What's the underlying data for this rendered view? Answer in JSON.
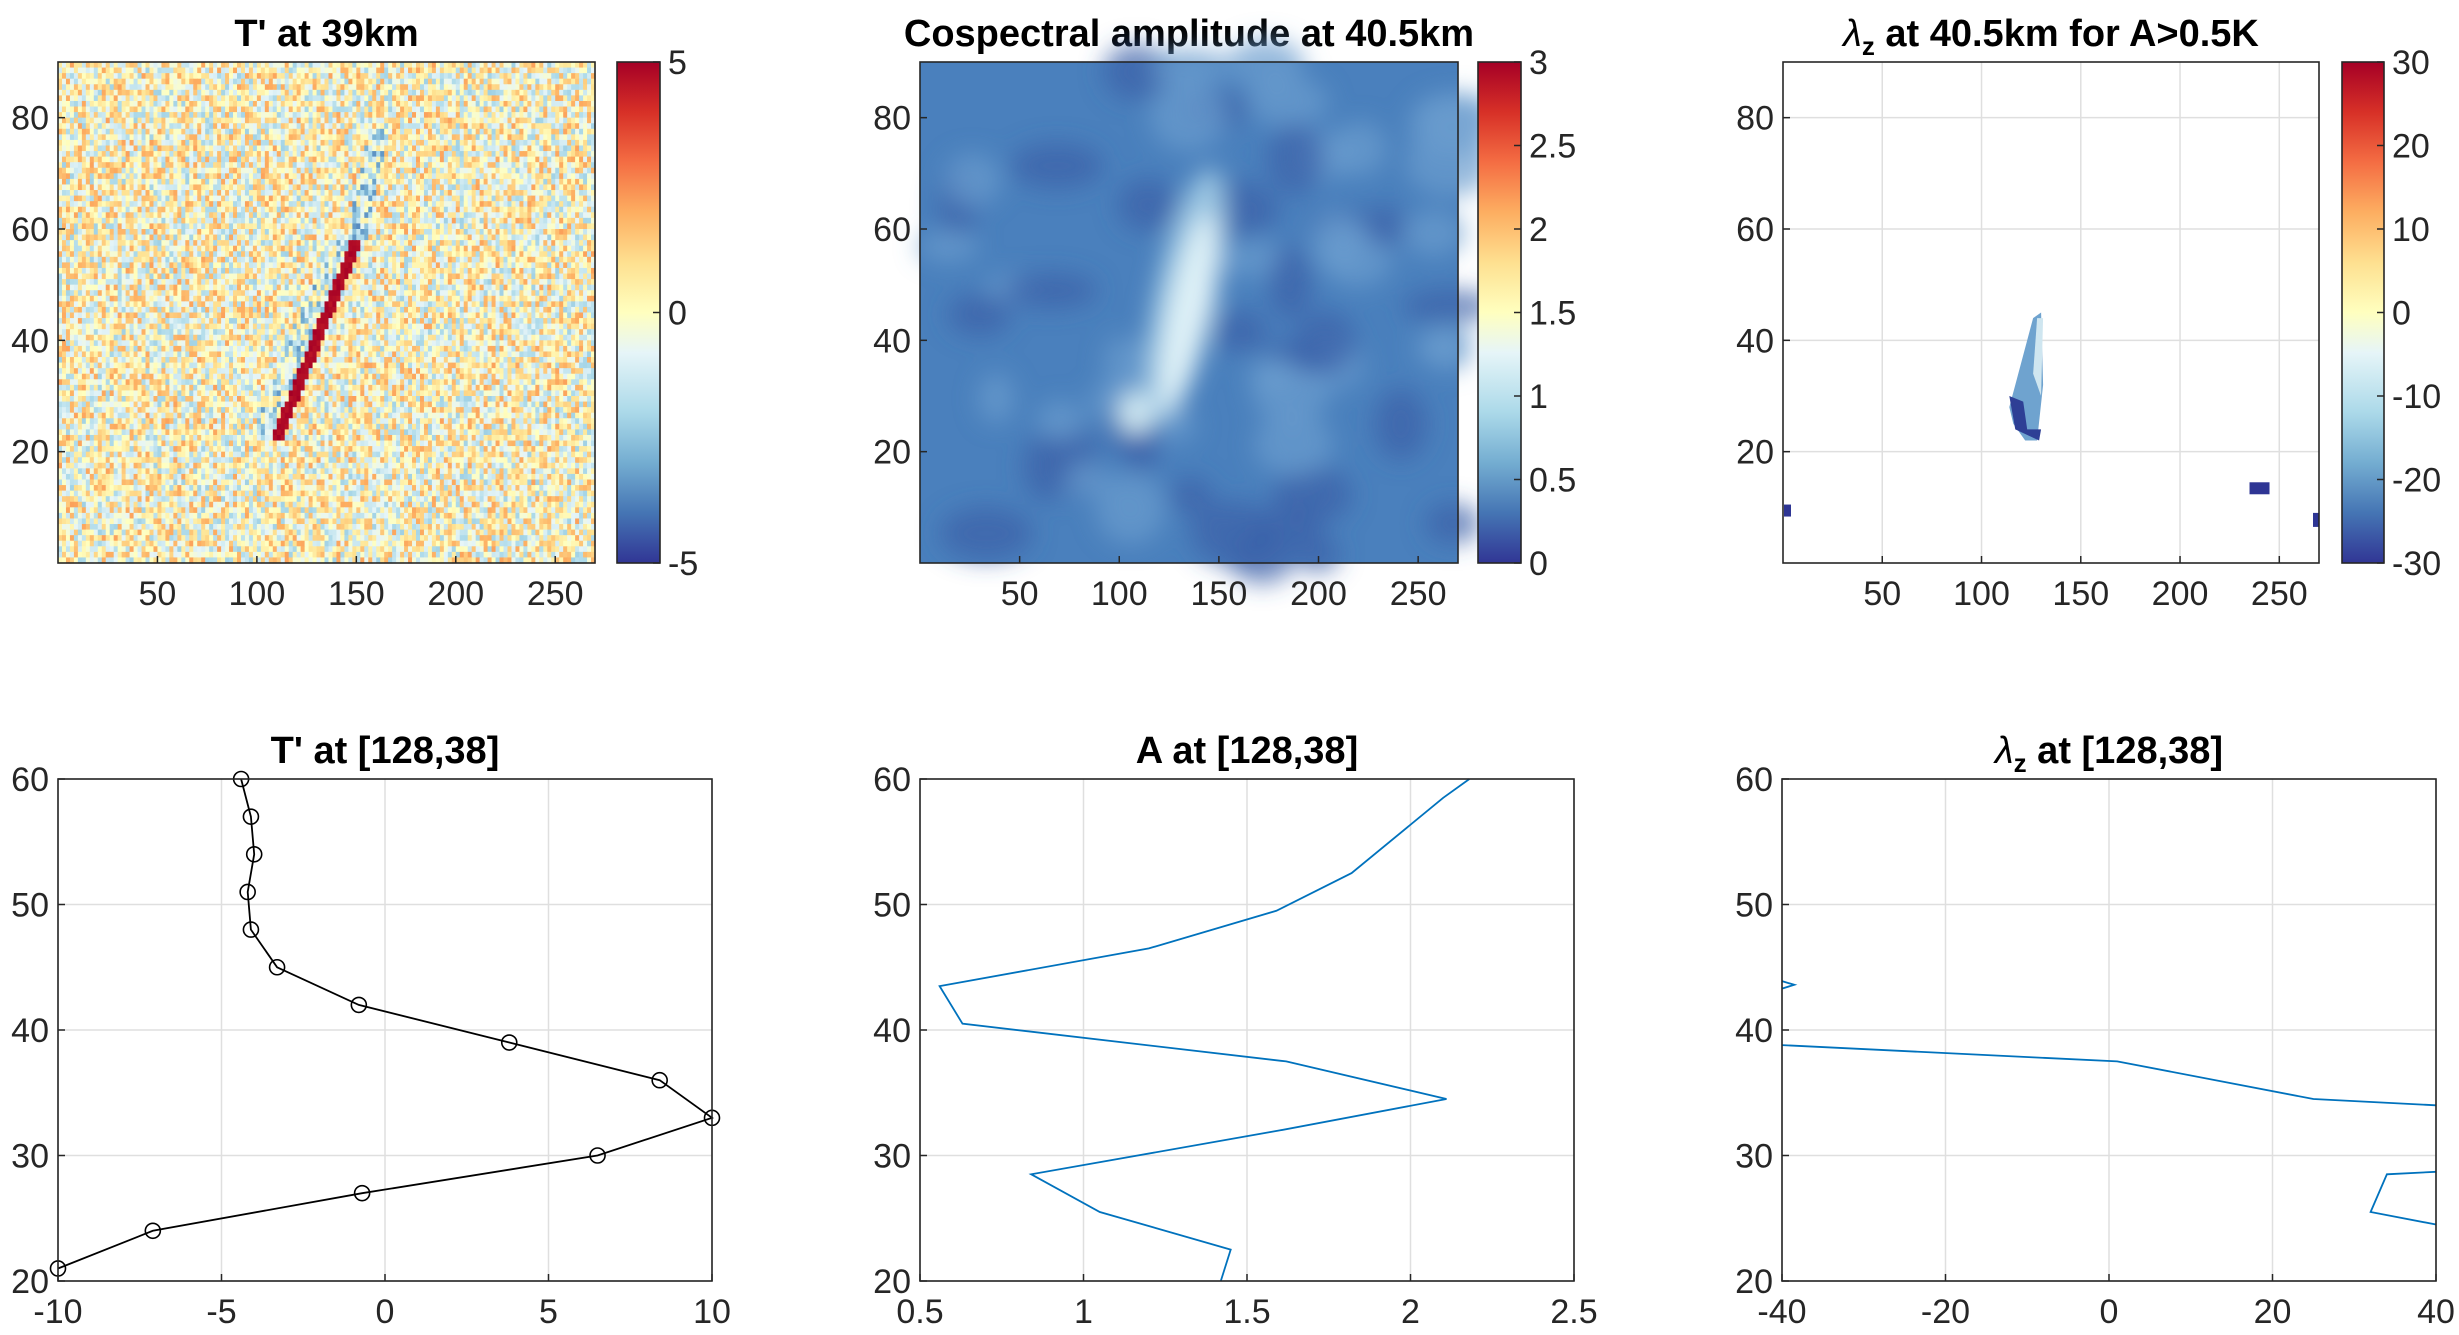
{
  "figure": {
    "panels": [
      {
        "type": "heatmap",
        "title": "T'  at 39km",
        "xlim": [
          0,
          270
        ],
        "ylim": [
          0,
          90
        ],
        "xticks": [
          50,
          100,
          150,
          200,
          250
        ],
        "yticks": [
          20,
          40,
          60,
          80
        ],
        "colorbar": {
          "range": [
            -5,
            5
          ],
          "ticks": [
            5,
            0,
            -5
          ],
          "colormap": "RdYlBu_r"
        },
        "feature": "noisy temperature perturbation field with a narrow positive ridge from about (112,24) to (148,56) flanked by a negative band"
      },
      {
        "type": "heatmap",
        "title": "Cospectral amplitude  at 40.5km",
        "xlim": [
          0,
          270
        ],
        "ylim": [
          0,
          90
        ],
        "xticks": [
          50,
          100,
          150,
          200,
          250
        ],
        "yticks": [
          20,
          40,
          60,
          80
        ],
        "colorbar": {
          "range": [
            0,
            3
          ],
          "ticks": [
            3,
            2.5,
            2,
            1.5,
            1,
            0.5,
            0
          ],
          "colormap": "RdYlBu_r"
        },
        "feature": "smooth amplitude field around 0.3-0.7 with an elongated bright maximum of about 1.3 near x 120-145, y 25-80"
      },
      {
        "type": "heatmap",
        "title_symbol": "λ",
        "title_subscript": "z",
        "title": "  at 40.5km for A>0.5K",
        "xlim": [
          0,
          270
        ],
        "ylim": [
          0,
          90
        ],
        "xticks": [
          50,
          100,
          150,
          200,
          250
        ],
        "yticks": [
          20,
          40,
          60,
          80
        ],
        "colorbar": {
          "range": [
            -30,
            30
          ],
          "ticks": [
            30,
            20,
            10,
            0,
            -10,
            -20,
            -30
          ],
          "colormap": "RdYlBu_r"
        },
        "feature": "values only where A>0.5K: a patch near x 114-134, y 22-44, and small spots near (238,13), (2,9), (270,7)"
      },
      {
        "type": "line",
        "title": "T' at [128,38]",
        "xlim": [
          -10,
          10
        ],
        "ylim": [
          20,
          60
        ],
        "xticks": [
          -10,
          -5,
          0,
          5,
          10
        ],
        "yticks": [
          20,
          30,
          40,
          50,
          60
        ],
        "color": "#000000",
        "markers": "circle",
        "x": [
          -4.4,
          -4.1,
          -4.0,
          -4.2,
          -4.1,
          -3.3,
          -0.8,
          3.8,
          8.4,
          10.0,
          6.5,
          -0.7,
          -7.1,
          -10.0
        ],
        "y": [
          60,
          57,
          54,
          51,
          48,
          45,
          42,
          39,
          36,
          33,
          30,
          27,
          24,
          21
        ]
      },
      {
        "type": "line",
        "title": "A at [128,38]",
        "xlim": [
          0.5,
          2.5
        ],
        "ylim": [
          20,
          60
        ],
        "xticks": [
          0.5,
          1,
          1.5,
          2,
          2.5
        ],
        "yticks": [
          20,
          30,
          40,
          50,
          60
        ],
        "color": "#0072bd",
        "x": [
          1.42,
          1.45,
          1.05,
          0.84,
          1.6,
          2.11,
          1.62,
          0.63,
          0.56,
          1.2,
          1.59,
          1.82,
          2.1,
          2.18
        ],
        "y": [
          20,
          22.5,
          25.5,
          28.5,
          32,
          34.5,
          37.5,
          40.5,
          43.5,
          46.5,
          49.5,
          52.5,
          58.5,
          60
        ]
      },
      {
        "type": "line",
        "title_symbol": "λ",
        "title_subscript": "z",
        "title": " at [128,38]",
        "xlim": [
          -40,
          40
        ],
        "ylim": [
          20,
          60
        ],
        "xticks": [
          -40,
          -20,
          0,
          20,
          40
        ],
        "yticks": [
          20,
          30,
          40,
          50,
          60
        ],
        "color": "#0072bd",
        "segments": [
          {
            "x": [
              -40,
              -38.5,
              -40
            ],
            "y": [
              43.3,
              43.6,
              43.9
            ]
          },
          {
            "x": [
              -40,
              1,
              25,
              40
            ],
            "y": [
              38.8,
              37.5,
              34.5,
              34
            ]
          },
          {
            "x": [
              40,
              32,
              34,
              40
            ],
            "y": [
              24.5,
              25.5,
              28.5,
              28.7
            ]
          }
        ]
      }
    ]
  }
}
